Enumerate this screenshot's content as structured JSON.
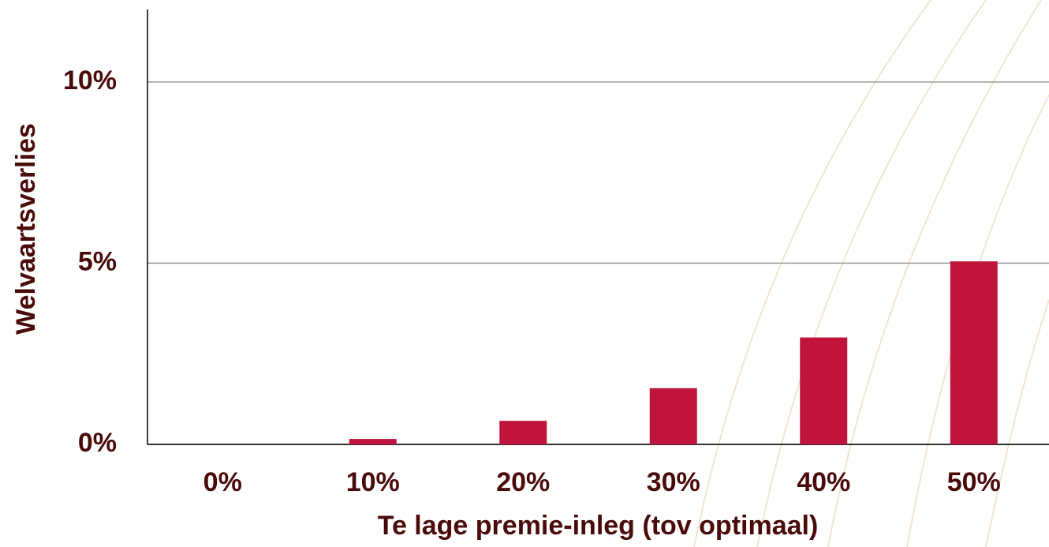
{
  "chart_data": {
    "type": "bar",
    "xlabel": "Te lage premie-inleg (tov optimaal)",
    "ylabel": "Welvaartsverlies",
    "categories": [
      "0%",
      "10%",
      "20%",
      "30%",
      "40%",
      "50%"
    ],
    "values": [
      0,
      0.15,
      0.65,
      1.55,
      2.95,
      5.05
    ],
    "color": "#c0143c",
    "ylim": [
      0,
      12
    ],
    "yticks": [
      {
        "value": 0,
        "label": "0%"
      },
      {
        "value": 5,
        "label": "5%"
      },
      {
        "value": 10,
        "label": "10%"
      }
    ],
    "grid": true
  }
}
